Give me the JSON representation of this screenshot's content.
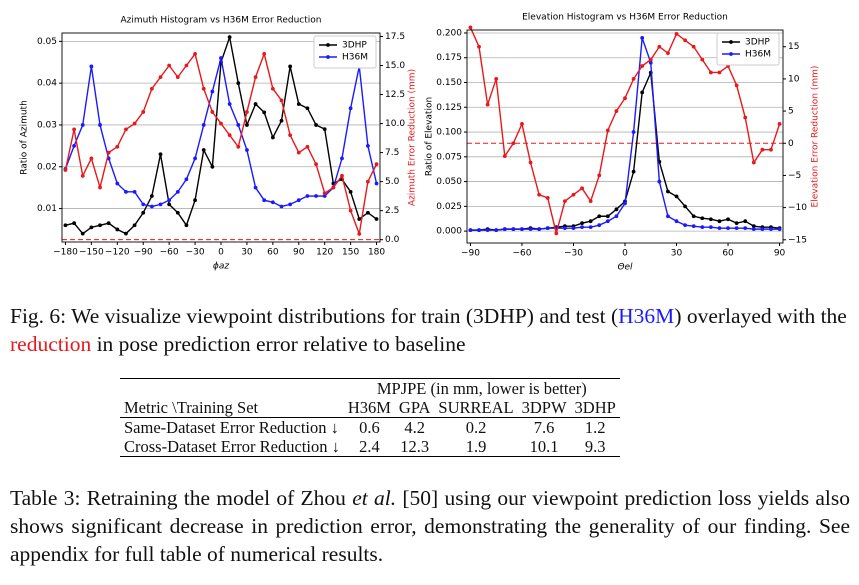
{
  "chart_data": [
    {
      "type": "line",
      "title": "Azimuth Histogram vs H36M Error Reduction",
      "xlabel": "ϕaz",
      "ylabel": "Ratio of Azimuth",
      "y2label": "Azimuth Error Reduction (mm)",
      "x": [
        -180,
        -170,
        -160,
        -150,
        -140,
        -130,
        -120,
        -110,
        -100,
        -90,
        -80,
        -70,
        -60,
        -50,
        -40,
        -30,
        -20,
        -10,
        0,
        10,
        20,
        30,
        40,
        50,
        60,
        70,
        80,
        90,
        100,
        110,
        120,
        130,
        140,
        150,
        160,
        170,
        180
      ],
      "series": [
        {
          "name": "3DHP",
          "color": "#000000",
          "values": [
            0.006,
            0.0065,
            0.004,
            0.0055,
            0.006,
            0.0065,
            0.005,
            0.004,
            0.006,
            0.009,
            0.013,
            0.023,
            0.011,
            0.009,
            0.006,
            0.012,
            0.024,
            0.02,
            0.045,
            0.051,
            0.04,
            0.03,
            0.035,
            0.033,
            0.027,
            0.031,
            0.044,
            0.035,
            0.034,
            0.03,
            0.029,
            0.016,
            0.017,
            0.014,
            0.0075,
            0.009,
            0.0075
          ]
        },
        {
          "name": "H36M",
          "color": "#1a1aff",
          "values": [
            0.0195,
            0.025,
            0.03,
            0.044,
            0.03,
            0.022,
            0.016,
            0.014,
            0.014,
            0.011,
            0.0105,
            0.011,
            0.012,
            0.014,
            0.017,
            0.022,
            0.03,
            0.038,
            0.046,
            0.035,
            0.03,
            0.024,
            0.015,
            0.012,
            0.0115,
            0.0105,
            0.011,
            0.012,
            0.013,
            0.013,
            0.013,
            0.015,
            0.022,
            0.034,
            0.044,
            0.025,
            0.016
          ]
        },
        {
          "color": "#e8191b",
          "axis": "y2",
          "values": [
            6.0,
            9.5,
            5.5,
            7.0,
            4.5,
            7.5,
            8.0,
            9.5,
            10.0,
            11.0,
            13.0,
            14.0,
            15.0,
            14.0,
            15.0,
            16.0,
            13.0,
            11.0,
            10.0,
            9.0,
            8.0,
            11.0,
            14.0,
            16.0,
            13.0,
            12.0,
            9.0,
            7.5,
            8.0,
            6.5,
            4.0,
            4.5,
            5.5,
            2.5,
            0.5,
            5.0,
            6.5
          ]
        }
      ],
      "xlim": [
        -184,
        184
      ],
      "xticks": [
        {
          "value": -180,
          "label": "−180"
        },
        {
          "value": -150,
          "label": "−150"
        },
        {
          "value": -120,
          "label": "−120"
        },
        {
          "value": -90,
          "label": "−90"
        },
        {
          "value": -60,
          "label": "−60"
        },
        {
          "value": -30,
          "label": "−30"
        },
        0,
        30,
        60,
        90,
        120,
        150,
        180
      ],
      "ylim": [
        0.002,
        0.052
      ],
      "yticks": [
        0.01,
        0.02,
        0.03,
        0.04,
        0.05
      ],
      "y2lim": [
        -0.2,
        17.8
      ],
      "y2ticks": [
        {
          "value": 0,
          "label": "0.0"
        },
        2.5,
        {
          "value": 5,
          "label": "5.0"
        },
        7.5,
        {
          "value": 10,
          "label": "10.0"
        },
        12.5,
        {
          "value": 15,
          "label": "15.0"
        },
        17.5
      ],
      "grid": true,
      "legend": "upper right",
      "hline": {
        "axis": "y2",
        "value": 0,
        "color": "#e8191b"
      }
    },
    {
      "type": "line",
      "title": "Elevation Histogram vs H36M Error Reduction",
      "xlabel": "Θel",
      "ylabel": "Ratio of Elevation",
      "y2label": "Elevation Error Reduction (mm)",
      "x": [
        -90,
        -85,
        -80,
        -75,
        -70,
        -65,
        -60,
        -55,
        -50,
        -45,
        -40,
        -35,
        -30,
        -25,
        -20,
        -15,
        -10,
        -5,
        0,
        5,
        10,
        15,
        20,
        25,
        30,
        35,
        40,
        45,
        50,
        55,
        60,
        65,
        70,
        75,
        80,
        85,
        90
      ],
      "series": [
        {
          "name": "3DHP",
          "color": "#000000",
          "values": [
            0.001,
            0.001,
            0.002,
            0.001,
            0.002,
            0.002,
            0.002,
            0.003,
            0.002,
            0.003,
            0.004,
            0.005,
            0.005,
            0.008,
            0.01,
            0.015,
            0.015,
            0.022,
            0.03,
            0.06,
            0.14,
            0.16,
            0.07,
            0.04,
            0.035,
            0.025,
            0.015,
            0.013,
            0.012,
            0.01,
            0.012,
            0.008,
            0.01,
            0.005,
            0.004,
            0.004,
            0.003
          ]
        },
        {
          "name": "H36M",
          "color": "#1a1aff",
          "values": [
            0.001,
            0.001,
            0.001,
            0.001,
            0.002,
            0.002,
            0.002,
            0.002,
            0.002,
            0.003,
            0.003,
            0.003,
            0.003,
            0.004,
            0.004,
            0.006,
            0.01,
            0.015,
            0.028,
            0.1,
            0.195,
            0.17,
            0.05,
            0.015,
            0.01,
            0.006,
            0.005,
            0.004,
            0.004,
            0.003,
            0.003,
            0.003,
            0.003,
            0.002,
            0.002,
            0.002,
            0.002
          ]
        },
        {
          "color": "#e8191b",
          "axis": "y2",
          "values": [
            18,
            15,
            6,
            10,
            -2,
            0,
            3,
            -3,
            -8,
            -8.5,
            -14,
            -9,
            -8,
            -7,
            -9,
            -5,
            2,
            5,
            7,
            10,
            12,
            13,
            15,
            14,
            17,
            16,
            15,
            13,
            11,
            11,
            12,
            9,
            4,
            -3,
            -1,
            -1,
            3
          ]
        }
      ],
      "xlim": [
        -92,
        92
      ],
      "xticks": [
        {
          "value": -90,
          "label": "−90"
        },
        {
          "value": -60,
          "label": "−60"
        },
        {
          "value": -30,
          "label": "−30"
        },
        0,
        30,
        60,
        90
      ],
      "ylim": [
        -0.012,
        0.203
      ],
      "yticks": [
        {
          "value": 0,
          "label": "0.000"
        },
        0.025,
        {
          "value": 0.05,
          "label": "0.050"
        },
        0.075,
        {
          "value": 0.1,
          "label": "0.100"
        },
        0.125,
        {
          "value": 0.15,
          "label": "0.150"
        },
        0.175,
        {
          "value": 0.2,
          "label": "0.200"
        }
      ],
      "y2lim": [
        -15.5,
        17.6
      ],
      "y2ticks": [
        {
          "value": -15,
          "label": "−15"
        },
        {
          "value": -10,
          "label": "−10"
        },
        {
          "value": -5,
          "label": "−5"
        },
        0,
        5,
        10,
        15
      ],
      "grid": true,
      "legend": "upper right",
      "hline": {
        "axis": "y2",
        "value": 0,
        "color": "#e8191b"
      }
    }
  ],
  "figure_caption": {
    "parts": [
      {
        "text": "Fig. 6: We visualize viewpoint distributions for train (3DHP) and test ("
      },
      {
        "text": "H36M",
        "color": "#1a1aff"
      },
      {
        "text": ") overlayed with the "
      },
      {
        "text": "reduction",
        "color": "#e8191b"
      },
      {
        "text": " in pose prediction error relative to baseline"
      }
    ]
  },
  "table": {
    "group_header": "MPJPE (in mm, lower is better)",
    "header": [
      "Metric \\Training Set",
      "H36M",
      "GPA",
      "SURREAL",
      "3DPW",
      "3DHP"
    ],
    "rows": [
      [
        "Same-Dataset Error Reduction ↓",
        0.6,
        4.2,
        0.2,
        7.6,
        1.2
      ],
      [
        "Cross-Dataset Error Reduction ↓",
        2.4,
        12.3,
        1.9,
        10.1,
        9.3
      ]
    ]
  },
  "table_caption": {
    "parts": [
      {
        "text": "Table 3: Retraining the model of Zhou "
      },
      {
        "text": "et al.",
        "italic": true
      },
      {
        "text": " [50] using our viewpoint prediction loss yields also shows significant decrease in prediction error, demonstrating the generality of our finding. See appendix for full table of numerical results."
      }
    ]
  }
}
